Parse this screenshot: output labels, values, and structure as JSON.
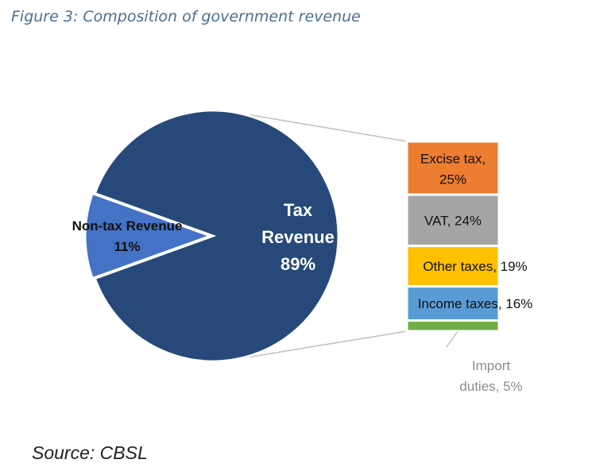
{
  "figure_title": "Figure 3: Composition of government revenue",
  "source": "Source: CBSL",
  "chart_data": [
    {
      "type": "pie",
      "slices": [
        {
          "label_lines": [
            "Tax",
            "Revenue",
            "89%"
          ],
          "name": "Tax Revenue",
          "value": 89,
          "color": "#26497a",
          "exploded": false
        },
        {
          "label_lines": [
            "Non-tax Revenue",
            "11%"
          ],
          "name": "Non-tax Revenue",
          "value": 11,
          "color": "#4472c4",
          "exploded": true
        }
      ]
    },
    {
      "type": "bar",
      "stacked": true,
      "parent": "Tax Revenue",
      "segments": [
        {
          "label_lines": [
            "Excise tax,",
            "25%"
          ],
          "name": "Excise tax",
          "value": 25,
          "color": "#ed7d31"
        },
        {
          "label_lines": [
            "VAT, 24%"
          ],
          "name": "VAT",
          "value": 24,
          "color": "#a5a5a5"
        },
        {
          "label_lines": [
            "Other taxes, 19%"
          ],
          "name": "Other taxes",
          "value": 19,
          "color": "#ffc000"
        },
        {
          "label_lines": [
            "Income taxes, 16%"
          ],
          "name": "Income taxes",
          "value": 16,
          "color": "#5b9bd5"
        },
        {
          "label_lines": [
            "Import",
            "duties, 5%"
          ],
          "name": "Import duties",
          "value": 5,
          "color": "#70ad47"
        }
      ]
    }
  ]
}
